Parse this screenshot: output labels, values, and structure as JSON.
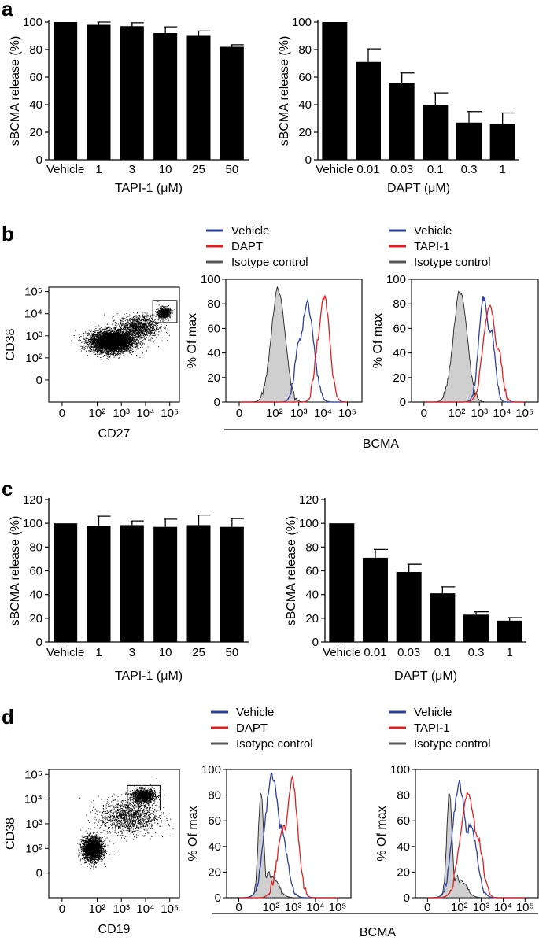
{
  "figure": {
    "panel_labels": [
      "a",
      "b",
      "c",
      "d"
    ],
    "shared_xlabel_bcma": "BCMA"
  },
  "colors": {
    "bar": "#000000",
    "vehicle": "#2b3f9c",
    "treated": "#e02020",
    "isotype_line": "#555555",
    "isotype_fill": "#cfcfcf",
    "dot": "#000000"
  },
  "chart_data": [
    {
      "id": "a-left",
      "type": "bar",
      "title": "",
      "categories": [
        "Vehicle",
        "1",
        "3",
        "10",
        "25",
        "50"
      ],
      "values": [
        100,
        98,
        97,
        92,
        90,
        82
      ],
      "errors": [
        0,
        2,
        2.5,
        4.5,
        3.5,
        1.5
      ],
      "xlabel": "TAPI-1 (μM)",
      "ylabel": "sBCMA release (%)",
      "ylim": [
        0,
        100
      ],
      "yticks": [
        "0",
        "20",
        "40",
        "60",
        "80",
        "100"
      ]
    },
    {
      "id": "a-right",
      "type": "bar",
      "title": "",
      "categories": [
        "Vehicle",
        "0.01",
        "0.03",
        "0.1",
        "0.3",
        "1"
      ],
      "values": [
        100,
        71,
        56,
        40,
        27,
        26
      ],
      "errors": [
        0,
        9.5,
        7,
        8.5,
        8,
        8
      ],
      "xlabel": "DAPT (μM)",
      "ylabel": "sBCMA release (%)",
      "ylim": [
        0,
        100
      ],
      "yticks": [
        "0",
        "20",
        "40",
        "60",
        "80",
        "100"
      ]
    },
    {
      "id": "c-left",
      "type": "bar",
      "title": "",
      "categories": [
        "Vehicle",
        "1",
        "3",
        "10",
        "25",
        "50"
      ],
      "values": [
        100,
        98,
        98.5,
        97,
        98.5,
        97
      ],
      "errors": [
        0,
        8,
        3.5,
        6.5,
        8.5,
        7
      ],
      "xlabel": "TAPI-1 (μM)",
      "ylabel": "sBCMA release (%)",
      "ylim": [
        0,
        120
      ],
      "yticks": [
        "0",
        "20",
        "40",
        "60",
        "80",
        "100",
        "120"
      ]
    },
    {
      "id": "c-right",
      "type": "bar",
      "title": "",
      "categories": [
        "Vehicle",
        "0.01",
        "0.03",
        "0.1",
        "0.3",
        "1"
      ],
      "values": [
        100,
        71,
        59,
        41,
        23,
        18
      ],
      "errors": [
        0,
        7,
        6.5,
        5.5,
        2.5,
        2.5
      ],
      "xlabel": "DAPT (μM)",
      "ylabel": "sBCMA release (%)",
      "ylim": [
        0,
        120
      ],
      "yticks": [
        "0",
        "20",
        "40",
        "60",
        "80",
        "100",
        "120"
      ]
    },
    {
      "id": "b-scatter",
      "type": "scatter",
      "xlabel": "CD27",
      "ylabel": "CD38",
      "xlim_log10": [
        0,
        5.4
      ],
      "ylim_log10": [
        0,
        5.2
      ],
      "xticks": [
        "0",
        "10²",
        "10³",
        "10⁴",
        "10⁵"
      ],
      "yticks": [
        "0",
        "10²",
        "10³",
        "10⁴",
        "10⁵"
      ],
      "clusters": [
        {
          "center_log10": [
            2.6,
            2.75
          ],
          "spread_log10": [
            0.75,
            0.4
          ],
          "n": 5200
        },
        {
          "center_log10": [
            4.75,
            4.05
          ],
          "spread_log10": [
            0.22,
            0.2
          ],
          "n": 700
        },
        {
          "center_log10": [
            3.7,
            3.4
          ],
          "spread_log10": [
            0.7,
            0.45
          ],
          "n": 1300
        }
      ],
      "gate_log10": {
        "x": [
          4.3,
          5.3
        ],
        "y": [
          3.6,
          4.6
        ]
      }
    },
    {
      "id": "b-hist-1",
      "type": "histogram",
      "legend": [
        "Vehicle",
        "DAPT",
        "Isotype control"
      ],
      "xlabel": "BCMA",
      "ylabel": "% Of max",
      "ylim": [
        0,
        100
      ],
      "yticks": [
        "0",
        "20",
        "40",
        "60",
        "80",
        "100"
      ],
      "xticks": [
        "0",
        "10²",
        "10³",
        "10⁴",
        "10⁵"
      ],
      "series": [
        {
          "name": "Isotype control",
          "peaks": [
            [
              2.15,
              0.28,
              92
            ]
          ],
          "filled": true
        },
        {
          "name": "Vehicle",
          "peaks": [
            [
              3.35,
              0.26,
              80
            ],
            [
              3.05,
              0.2,
              50
            ]
          ],
          "filled": false
        },
        {
          "name": "DAPT",
          "peaks": [
            [
              4.05,
              0.22,
              86
            ],
            [
              3.85,
              0.18,
              55
            ]
          ],
          "filled": false
        }
      ]
    },
    {
      "id": "b-hist-2",
      "type": "histogram",
      "legend": [
        "Vehicle",
        "TAPI-1",
        "Isotype control"
      ],
      "xlabel": "BCMA",
      "ylabel": "% Of max",
      "ylim": [
        0,
        100
      ],
      "yticks": [
        "0",
        "20",
        "40",
        "60",
        "80",
        "100"
      ],
      "xticks": [
        "0",
        "10²",
        "10³",
        "10⁴",
        "10⁵"
      ],
      "series": [
        {
          "name": "Isotype control",
          "peaks": [
            [
              2.15,
              0.3,
              90
            ]
          ],
          "filled": true
        },
        {
          "name": "Vehicle",
          "peaks": [
            [
              3.2,
              0.22,
              85
            ],
            [
              3.5,
              0.18,
              60
            ]
          ],
          "filled": false
        },
        {
          "name": "TAPI-1",
          "peaks": [
            [
              3.45,
              0.28,
              78
            ],
            [
              3.8,
              0.2,
              45
            ]
          ],
          "filled": false
        }
      ]
    },
    {
      "id": "d-scatter",
      "type": "scatter",
      "xlabel": "CD19",
      "ylabel": "CD38",
      "xlim_log10": [
        0,
        5.4
      ],
      "ylim_log10": [
        0,
        5.2
      ],
      "xticks": [
        "0",
        "10²",
        "10³",
        "10⁴",
        "10⁵"
      ],
      "yticks": [
        "0",
        "10²",
        "10³",
        "10⁴",
        "10⁵"
      ],
      "clusters": [
        {
          "center_log10": [
            1.8,
            2.0
          ],
          "spread_log10": [
            0.35,
            0.4
          ],
          "n": 2600
        },
        {
          "center_log10": [
            3.9,
            4.15
          ],
          "spread_log10": [
            0.4,
            0.22
          ],
          "n": 1300
        },
        {
          "center_log10": [
            3.3,
            3.3
          ],
          "spread_log10": [
            1.0,
            0.6
          ],
          "n": 1400
        }
      ],
      "gate_log10": {
        "x": [
          3.25,
          4.6
        ],
        "y": [
          3.55,
          4.55
        ]
      }
    },
    {
      "id": "d-hist-1",
      "type": "histogram",
      "legend": [
        "Vehicle",
        "DAPT",
        "Isotype control"
      ],
      "xlabel": "BCMA",
      "ylabel": "% Of max",
      "ylim": [
        0,
        100
      ],
      "yticks": [
        "0",
        "20",
        "40",
        "60",
        "80",
        "100"
      ],
      "xticks": [
        "0",
        "10²",
        "10³",
        "10⁴",
        "10⁵"
      ],
      "series": [
        {
          "name": "Isotype control",
          "peaks": [
            [
              1.55,
              0.12,
              82
            ],
            [
              1.9,
              0.35,
              18
            ]
          ],
          "filled": true
        },
        {
          "name": "Vehicle",
          "peaks": [
            [
              2.05,
              0.32,
              95
            ],
            [
              2.4,
              0.3,
              55
            ]
          ],
          "filled": false
        },
        {
          "name": "DAPT",
          "peaks": [
            [
              2.95,
              0.25,
              92
            ],
            [
              2.6,
              0.3,
              55
            ]
          ],
          "filled": false
        }
      ]
    },
    {
      "id": "d-hist-2",
      "type": "histogram",
      "legend": [
        "Vehicle",
        "TAPI-1",
        "Isotype control"
      ],
      "xlabel": "BCMA",
      "ylabel": "% Of max",
      "ylim": [
        0,
        100
      ],
      "yticks": [
        "0",
        "20",
        "40",
        "60",
        "80",
        "100"
      ],
      "xticks": [
        "0",
        "10²",
        "10³",
        "10⁴",
        "10⁵"
      ],
      "series": [
        {
          "name": "Isotype control",
          "peaks": [
            [
              1.55,
              0.12,
              82
            ],
            [
              1.9,
              0.35,
              15
            ]
          ],
          "filled": true
        },
        {
          "name": "Vehicle",
          "peaks": [
            [
              2.0,
              0.3,
              88
            ],
            [
              2.5,
              0.3,
              55
            ]
          ],
          "filled": false
        },
        {
          "name": "TAPI-1",
          "peaks": [
            [
              2.4,
              0.35,
              80
            ],
            [
              2.8,
              0.25,
              50
            ]
          ],
          "filled": false
        }
      ]
    }
  ]
}
